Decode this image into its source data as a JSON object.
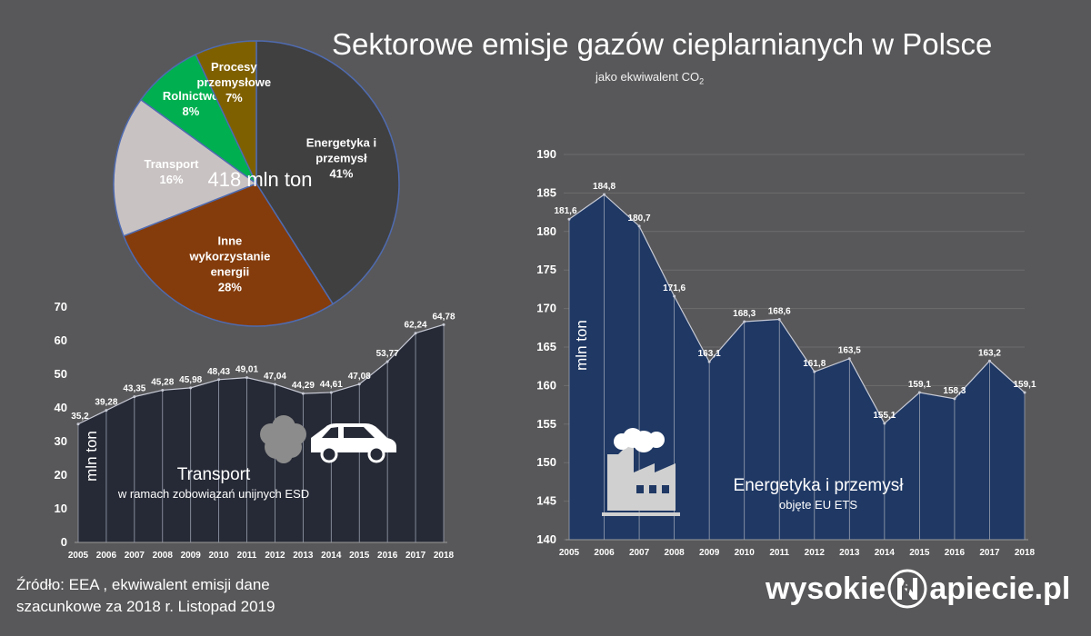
{
  "header": {
    "title": "Sektorowe emisje gazów cieplarnianych w Polsce",
    "subtitle": "jako ekwiwalent CO",
    "subtitle_sub": "2"
  },
  "source": {
    "line1": "Źródło: EEA , ekwiwalent emisji dane",
    "line2": "szacunkowe za 2018 r.  Listopad 2019"
  },
  "logo": {
    "left": "wysokie",
    "right": "apiecie.pl"
  },
  "chart_data": [
    {
      "type": "pie",
      "center_label": "418 mln ton",
      "slices": [
        {
          "label": [
            "Energetyka i",
            "przemysł"
          ],
          "value": 41,
          "value_label": "41%",
          "color": "#404040"
        },
        {
          "label": [
            "Inne",
            "wykorzystanie",
            "energii"
          ],
          "value": 28,
          "value_label": "28%",
          "color": "#843c0c"
        },
        {
          "label": [
            "Transport"
          ],
          "value": 16,
          "value_label": "16%",
          "color": "#c9c2c2"
        },
        {
          "label": [
            "Rolnictwo"
          ],
          "value": 8,
          "value_label": "8%",
          "color": "#00b050"
        },
        {
          "label": [
            "Procesy",
            "przemysłowe"
          ],
          "value": 7,
          "value_label": "7%",
          "color": "#7f6000"
        }
      ]
    },
    {
      "type": "area",
      "title": "Transport",
      "subtitle": "w ramach zobowiązań unijnych ESD",
      "ylabel": "mln ton",
      "x": [
        "2005",
        "2006",
        "2007",
        "2008",
        "2009",
        "2010",
        "2011",
        "2012",
        "2013",
        "2014",
        "2015",
        "2016",
        "2017",
        "2018"
      ],
      "values": [
        35.2,
        39.28,
        43.35,
        45.28,
        45.98,
        48.43,
        49.01,
        47.04,
        44.29,
        44.61,
        47.08,
        53.77,
        62.24,
        64.78
      ],
      "value_labels": [
        "35,2",
        "39,28",
        "43,35",
        "45,28",
        "45,98",
        "48,43",
        "49,01",
        "47,04",
        "44,29",
        "44,61",
        "47,08",
        "53,77",
        "62,24",
        "64,78"
      ],
      "yticks": [
        0,
        10,
        20,
        30,
        40,
        50,
        60,
        70
      ],
      "ylim": [
        0,
        70
      ],
      "color": "#262a36"
    },
    {
      "type": "area",
      "title": "Energetyka i przemysł",
      "subtitle": "objęte EU ETS",
      "ylabel": "mln ton",
      "x": [
        "2005",
        "2006",
        "2007",
        "2008",
        "2009",
        "2010",
        "2011",
        "2012",
        "2013",
        "2014",
        "2015",
        "2016",
        "2017",
        "2018"
      ],
      "values": [
        181.6,
        184.8,
        180.7,
        171.6,
        163.1,
        168.3,
        168.6,
        161.8,
        163.5,
        155.1,
        159.1,
        158.3,
        163.2,
        159.1
      ],
      "value_labels": [
        "181,6",
        "184,8",
        "180,7",
        "171,6",
        "163,1",
        "168,3",
        "168,6",
        "161,8",
        "163,5",
        "155,1",
        "159,1",
        "158,3",
        "163,2",
        "159,1"
      ],
      "yticks": [
        140,
        145,
        150,
        155,
        160,
        165,
        170,
        175,
        180,
        185,
        190
      ],
      "ylim": [
        140,
        190
      ],
      "grid": true,
      "color": "#1f3864"
    }
  ]
}
